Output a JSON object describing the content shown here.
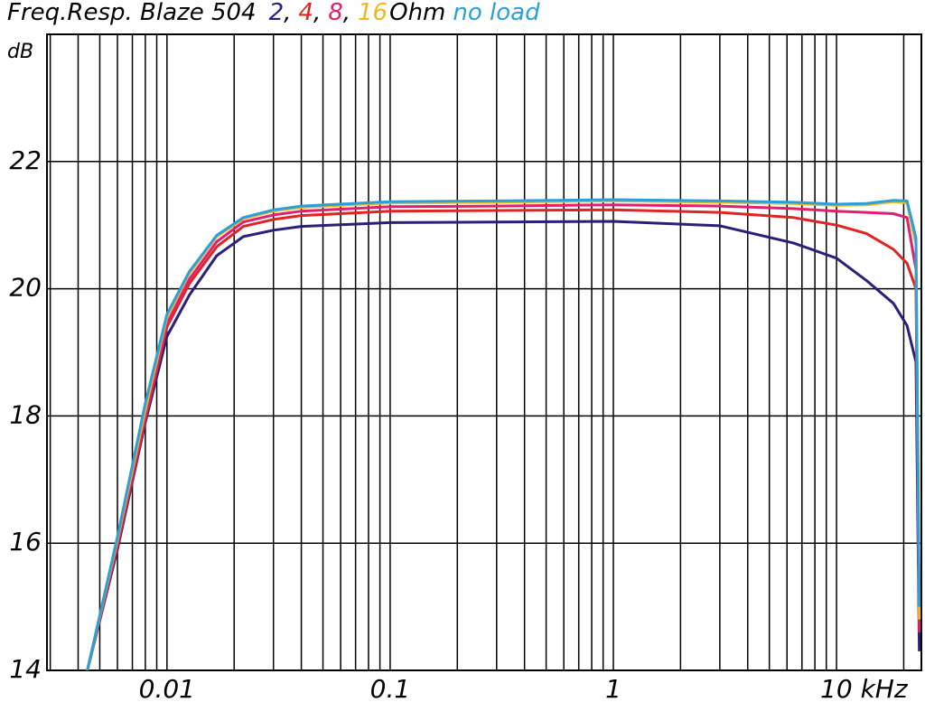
{
  "chart_data": {
    "type": "line",
    "title": "Freq.Resp. Blaze 504",
    "legend_separator": ",",
    "legend_unit": "Ohm",
    "y_label": "dB",
    "log_x": true,
    "grid": true,
    "xlim": [
      0.0029,
      24
    ],
    "ylim": [
      14,
      24
    ],
    "xticks": [
      0.01,
      0.1,
      1,
      {
        "value": 10,
        "label": "10 kHz"
      }
    ],
    "xminor": [
      0.003,
      0.004,
      0.005,
      0.006,
      0.007,
      0.008,
      0.009,
      0.02,
      0.03,
      0.04,
      0.05,
      0.06,
      0.07,
      0.08,
      0.09,
      0.2,
      0.3,
      0.4,
      0.5,
      0.6,
      0.7,
      0.8,
      0.9,
      2,
      3,
      4,
      5,
      6,
      7,
      8,
      9,
      20
    ],
    "yticks": [
      14,
      16,
      18,
      20,
      22
    ],
    "x": [
      0.0044,
      0.006,
      0.008,
      0.01,
      0.0126,
      0.0167,
      0.022,
      0.03,
      0.04,
      0.1,
      0.3,
      1,
      3,
      6.4,
      10,
      13.6,
      18,
      20.7,
      22.7,
      23.5
    ],
    "series": [
      {
        "name": "2",
        "color": "#2b1f78",
        "values": [
          14.0,
          15.9,
          17.9,
          19.25,
          19.9,
          20.52,
          20.82,
          20.92,
          20.98,
          21.04,
          21.05,
          21.06,
          20.99,
          20.72,
          20.48,
          20.13,
          19.77,
          19.42,
          18.85,
          14.3
        ]
      },
      {
        "name": "4",
        "color": "#e02424",
        "values": [
          14.0,
          15.95,
          17.95,
          19.4,
          20.08,
          20.66,
          20.98,
          21.09,
          21.15,
          21.22,
          21.23,
          21.24,
          21.2,
          21.12,
          21.0,
          20.87,
          20.62,
          20.4,
          20.0,
          14.8
        ]
      },
      {
        "name": "8",
        "color": "#e0206e",
        "values": [
          14.0,
          16.0,
          18.0,
          19.45,
          20.15,
          20.74,
          21.05,
          21.16,
          21.22,
          21.29,
          21.3,
          21.32,
          21.3,
          21.26,
          21.22,
          21.2,
          21.18,
          21.12,
          20.3,
          14.6
        ]
      },
      {
        "name": "16",
        "color": "#f0b820",
        "values": [
          14.0,
          16.05,
          18.1,
          19.55,
          20.24,
          20.82,
          21.1,
          21.22,
          21.28,
          21.35,
          21.36,
          21.38,
          21.36,
          21.34,
          21.31,
          21.32,
          21.37,
          21.35,
          20.7,
          14.8
        ]
      },
      {
        "name": "no load",
        "color": "#2a9fd8",
        "values": [
          14.0,
          16.1,
          18.2,
          19.6,
          20.27,
          20.84,
          21.12,
          21.24,
          21.3,
          21.37,
          21.38,
          21.4,
          21.38,
          21.36,
          21.33,
          21.34,
          21.39,
          21.38,
          20.8,
          15.0
        ]
      }
    ]
  }
}
